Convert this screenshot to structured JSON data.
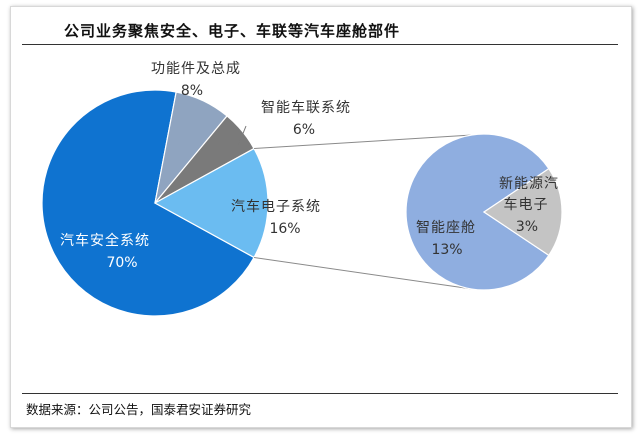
{
  "page": {
    "title": "公司业务聚焦安全、电子、车联等汽车座舱部件",
    "source": "数据来源：公司公告，国泰君安证券研究"
  },
  "chart_data": {
    "type": "pie",
    "main_pie": {
      "slices": [
        {
          "label": "汽车安全系统",
          "value": 70,
          "display": "70%",
          "color": "#0f73d0"
        },
        {
          "label": "功能件及总成",
          "value": 8,
          "display": "8%",
          "color": "#8fa4c0"
        },
        {
          "label": "智能车联系统",
          "value": 6,
          "display": "6%",
          "color": "#7a7a7a"
        },
        {
          "label": "汽车电子系统",
          "value": 16,
          "display": "16%",
          "color": "#6bbcf1"
        }
      ]
    },
    "breakdown_pie": {
      "parent": "汽车电子系统",
      "slices": [
        {
          "label": "智能座舱",
          "value": 13,
          "display": "13%",
          "color": "#8faee0"
        },
        {
          "label": "新能源汽车电子",
          "label_lines": [
            "新能源汽",
            "车电子"
          ],
          "value": 3,
          "display": "3%",
          "color": "#c4c4c4"
        }
      ]
    }
  }
}
